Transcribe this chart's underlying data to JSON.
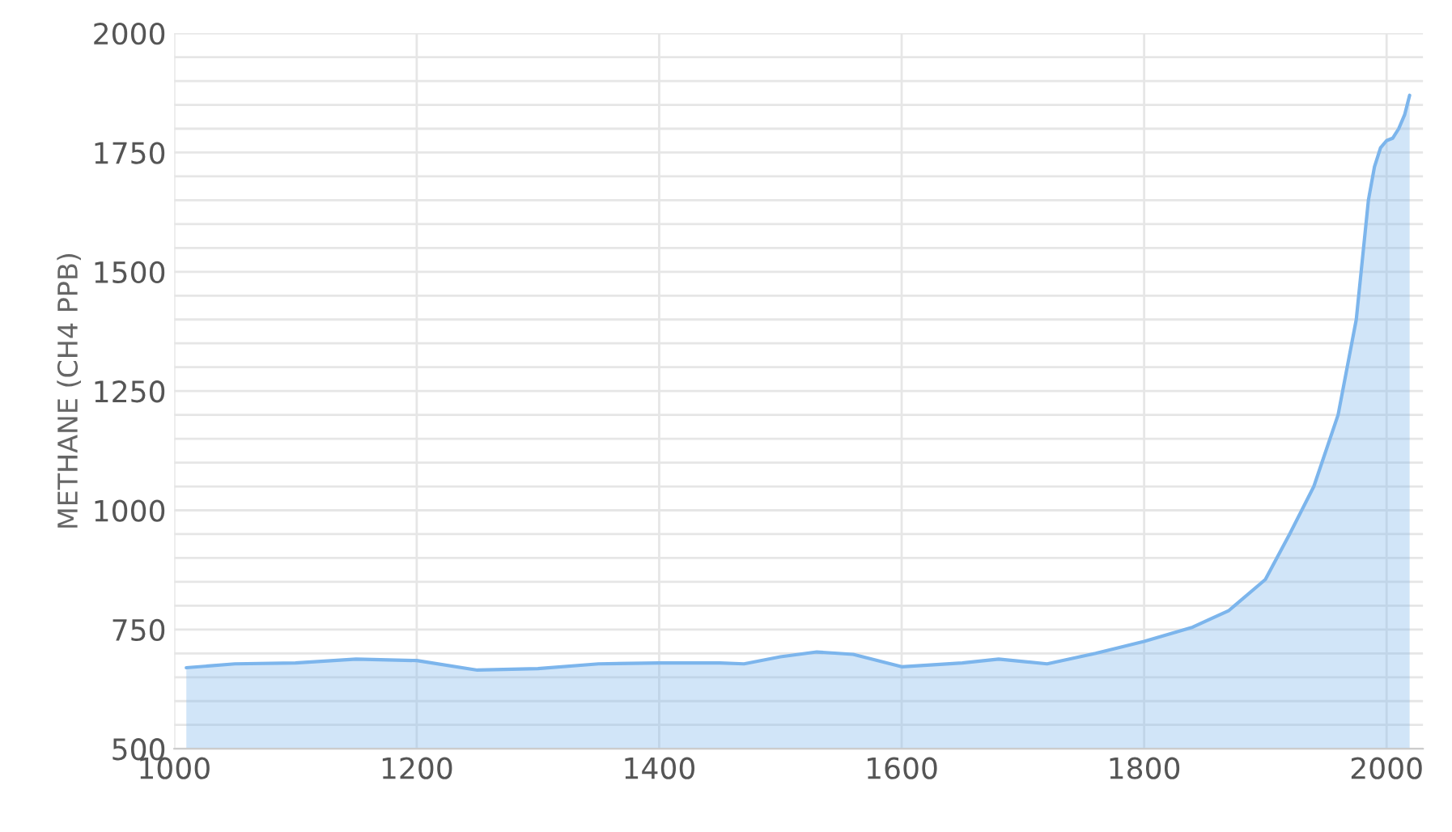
{
  "chart_data": {
    "type": "area",
    "ylabel": "METHANE (CH4 PPB)",
    "x": [
      1010,
      1050,
      1100,
      1150,
      1200,
      1250,
      1300,
      1350,
      1400,
      1450,
      1470,
      1500,
      1530,
      1560,
      1600,
      1650,
      1680,
      1720,
      1760,
      1800,
      1840,
      1870,
      1900,
      1920,
      1940,
      1960,
      1975,
      1985,
      1990,
      1995,
      2000,
      2005,
      2010,
      2015,
      2019
    ],
    "series": [
      {
        "color": "#7cb5ec",
        "values": [
          670,
          678,
          680,
          688,
          685,
          665,
          668,
          678,
          680,
          680,
          678,
          693,
          703,
          698,
          672,
          680,
          688,
          678,
          700,
          725,
          755,
          790,
          855,
          950,
          1050,
          1200,
          1400,
          1650,
          1720,
          1760,
          1775,
          1780,
          1800,
          1830,
          1870
        ]
      }
    ],
    "xlim": [
      1000,
      2030
    ],
    "xticks": [
      1000,
      1200,
      1400,
      1600,
      1800,
      2000
    ],
    "ylim": [
      500,
      2000
    ],
    "yticks": [
      500,
      {
        "value": 550,
        "label": null
      },
      {
        "value": 600,
        "label": null
      },
      {
        "value": 650,
        "label": null
      },
      {
        "value": 700,
        "label": null
      },
      750,
      {
        "value": 800,
        "label": null
      },
      {
        "value": 850,
        "label": null
      },
      {
        "value": 900,
        "label": null
      },
      {
        "value": 950,
        "label": null
      },
      1000,
      {
        "value": 1050,
        "label": null
      },
      {
        "value": 1100,
        "label": null
      },
      {
        "value": 1150,
        "label": null
      },
      {
        "value": 1200,
        "label": null
      },
      1250,
      {
        "value": 1300,
        "label": null
      },
      {
        "value": 1350,
        "label": null
      },
      {
        "value": 1400,
        "label": null
      },
      {
        "value": 1450,
        "label": null
      },
      1500,
      {
        "value": 1550,
        "label": null
      },
      {
        "value": 1600,
        "label": null
      },
      {
        "value": 1650,
        "label": null
      },
      {
        "value": 1700,
        "label": null
      },
      1750,
      {
        "value": 1800,
        "label": null
      },
      {
        "value": 1850,
        "label": null
      },
      {
        "value": 1900,
        "label": null
      },
      {
        "value": 1950,
        "label": null
      },
      2000
    ],
    "grid": true,
    "legend": false
  }
}
